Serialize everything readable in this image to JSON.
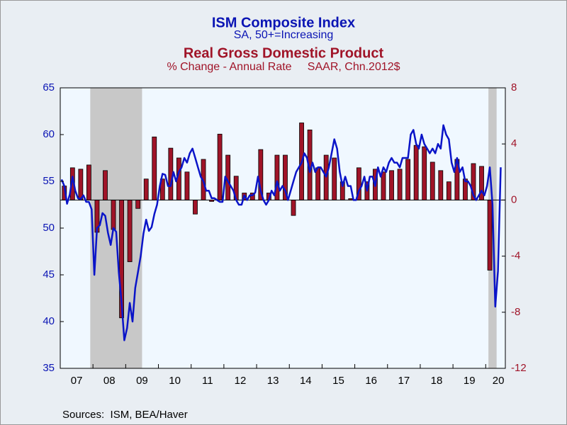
{
  "chart_data": {
    "type": "combo",
    "xlim": [
      2007,
      2020.6
    ],
    "xticks": [
      {
        "value": 2007,
        "label": "07"
      },
      {
        "value": 2008,
        "label": "08"
      },
      {
        "value": 2009,
        "label": "09"
      },
      {
        "value": 2010,
        "label": "10"
      },
      {
        "value": 2011,
        "label": "11"
      },
      {
        "value": 2012,
        "label": "12"
      },
      {
        "value": 2013,
        "label": "13"
      },
      {
        "value": 2014,
        "label": "14"
      },
      {
        "value": 2015,
        "label": "15"
      },
      {
        "value": 2016,
        "label": "16"
      },
      {
        "value": 2017,
        "label": "17"
      },
      {
        "value": 2018,
        "label": "18"
      },
      {
        "value": 2019,
        "label": "19"
      },
      {
        "value": 2020,
        "label": "20"
      }
    ],
    "ylim": [
      35,
      65
    ],
    "yticks": [
      35,
      40,
      45,
      50,
      55,
      60,
      65
    ],
    "y2lim": [
      -12,
      8
    ],
    "y2ticks": [
      -12,
      -8,
      -4,
      0,
      4,
      8
    ],
    "recessions": [
      [
        "2007-12",
        "2009-06"
      ],
      [
        "2020-02",
        "2020-04"
      ]
    ],
    "source": "Sources:  ISM, BEA/Haver",
    "series": [
      {
        "name": "ISM Composite Index",
        "subtitle": "SA, 50+=Increasing",
        "type": "line",
        "axis": "y",
        "color": "#0a14c8",
        "x": [
          "2007-01",
          "2007-02",
          "2007-03",
          "2007-04",
          "2007-05",
          "2007-06",
          "2007-07",
          "2007-08",
          "2007-09",
          "2007-10",
          "2007-11",
          "2007-12",
          "2008-01",
          "2008-02",
          "2008-03",
          "2008-04",
          "2008-05",
          "2008-06",
          "2008-07",
          "2008-08",
          "2008-09",
          "2008-10",
          "2008-11",
          "2008-12",
          "2009-01",
          "2009-02",
          "2009-03",
          "2009-04",
          "2009-05",
          "2009-06",
          "2009-07",
          "2009-08",
          "2009-09",
          "2009-10",
          "2009-11",
          "2009-12",
          "2010-01",
          "2010-02",
          "2010-03",
          "2010-04",
          "2010-05",
          "2010-06",
          "2010-07",
          "2010-08",
          "2010-09",
          "2010-10",
          "2010-11",
          "2010-12",
          "2011-01",
          "2011-02",
          "2011-03",
          "2011-04",
          "2011-05",
          "2011-06",
          "2011-07",
          "2011-08",
          "2011-09",
          "2011-10",
          "2011-11",
          "2011-12",
          "2012-01",
          "2012-02",
          "2012-03",
          "2012-04",
          "2012-05",
          "2012-06",
          "2012-07",
          "2012-08",
          "2012-09",
          "2012-10",
          "2012-11",
          "2012-12",
          "2013-01",
          "2013-02",
          "2013-03",
          "2013-04",
          "2013-05",
          "2013-06",
          "2013-07",
          "2013-08",
          "2013-09",
          "2013-10",
          "2013-11",
          "2013-12",
          "2014-01",
          "2014-02",
          "2014-03",
          "2014-04",
          "2014-05",
          "2014-06",
          "2014-07",
          "2014-08",
          "2014-09",
          "2014-10",
          "2014-11",
          "2014-12",
          "2015-01",
          "2015-02",
          "2015-03",
          "2015-04",
          "2015-05",
          "2015-06",
          "2015-07",
          "2015-08",
          "2015-09",
          "2015-10",
          "2015-11",
          "2015-12",
          "2016-01",
          "2016-02",
          "2016-03",
          "2016-04",
          "2016-05",
          "2016-06",
          "2016-07",
          "2016-08",
          "2016-09",
          "2016-10",
          "2016-11",
          "2016-12",
          "2017-01",
          "2017-02",
          "2017-03",
          "2017-04",
          "2017-05",
          "2017-06",
          "2017-07",
          "2017-08",
          "2017-09",
          "2017-10",
          "2017-11",
          "2017-12",
          "2018-01",
          "2018-02",
          "2018-03",
          "2018-04",
          "2018-05",
          "2018-06",
          "2018-07",
          "2018-08",
          "2018-09",
          "2018-10",
          "2018-11",
          "2018-12",
          "2019-01",
          "2019-02",
          "2019-03",
          "2019-04",
          "2019-05",
          "2019-06",
          "2019-07",
          "2019-08",
          "2019-09",
          "2019-10",
          "2019-11",
          "2019-12",
          "2020-01",
          "2020-02",
          "2020-03",
          "2020-04",
          "2020-05",
          "2020-06"
        ],
        "values": [
          55.2,
          54.5,
          52.6,
          53.6,
          55.5,
          54.0,
          53.2,
          53.1,
          53.5,
          52.8,
          52.8,
          52.0,
          45.0,
          50.0,
          50.3,
          51.6,
          51.3,
          49.5,
          48.2,
          50.0,
          49.6,
          45.2,
          42.0,
          38.0,
          39.3,
          42.0,
          40.0,
          43.6,
          45.3,
          47.0,
          49.4,
          50.9,
          49.7,
          50.1,
          51.5,
          52.5,
          54.5,
          55.8,
          55.7,
          54.5,
          54.5,
          56.0,
          55.0,
          56.0,
          56.5,
          57.5,
          57.0,
          58.0,
          58.5,
          57.5,
          56.5,
          55.5,
          55.0,
          54.0,
          54.0,
          53.2,
          53.2,
          53.0,
          52.8,
          52.8,
          55.5,
          55.0,
          54.5,
          54.0,
          53.0,
          52.5,
          52.5,
          53.5,
          53.0,
          53.5,
          53.5,
          53.8,
          55.5,
          54.0,
          53.0,
          52.5,
          53.0,
          54.0,
          53.5,
          55.0,
          54.0,
          54.5,
          54.0,
          53.0,
          54.0,
          55.0,
          56.0,
          56.5,
          57.0,
          58.0,
          57.5,
          56.0,
          57.0,
          56.0,
          56.5,
          56.5,
          56.0,
          55.5,
          56.5,
          58.0,
          59.5,
          58.5,
          56.0,
          54.5,
          55.5,
          54.5,
          54.5,
          53.0,
          53.0,
          54.0,
          54.5,
          55.5,
          54.0,
          55.5,
          55.5,
          54.5,
          56.5,
          55.5,
          56.5,
          56.0,
          57.0,
          57.5,
          57.0,
          57.0,
          56.5,
          57.5,
          57.5,
          57.5,
          60.0,
          60.5,
          59.0,
          58.5,
          60.0,
          59.0,
          58.5,
          58.0,
          58.5,
          58.0,
          59.0,
          58.5,
          61.0,
          60.0,
          59.5,
          57.0,
          56.0,
          57.5,
          56.0,
          56.5,
          55.0,
          55.0,
          54.5,
          53.5,
          53.0,
          53.5,
          54.0,
          53.5,
          54.5,
          56.5,
          52.5,
          41.6,
          45.4,
          56.5
        ]
      },
      {
        "name": "Real Gross Domestic Product",
        "subtitle": "% Change - Annual Rate     SAAR, Chn.2012$",
        "type": "bar",
        "axis": "y2",
        "color": "#a01428",
        "x": [
          "2007Q1",
          "2007Q2",
          "2007Q3",
          "2007Q4",
          "2008Q1",
          "2008Q2",
          "2008Q3",
          "2008Q4",
          "2009Q1",
          "2009Q2",
          "2009Q3",
          "2009Q4",
          "2010Q1",
          "2010Q2",
          "2010Q3",
          "2010Q4",
          "2011Q1",
          "2011Q2",
          "2011Q3",
          "2011Q4",
          "2012Q1",
          "2012Q2",
          "2012Q3",
          "2012Q4",
          "2013Q1",
          "2013Q2",
          "2013Q3",
          "2013Q4",
          "2014Q1",
          "2014Q2",
          "2014Q3",
          "2014Q4",
          "2015Q1",
          "2015Q2",
          "2015Q3",
          "2015Q4",
          "2016Q1",
          "2016Q2",
          "2016Q3",
          "2016Q4",
          "2017Q1",
          "2017Q2",
          "2017Q3",
          "2017Q4",
          "2018Q1",
          "2018Q2",
          "2018Q3",
          "2018Q4",
          "2019Q1",
          "2019Q2",
          "2019Q3",
          "2019Q4",
          "2020Q1"
        ],
        "values": [
          1.0,
          2.3,
          2.2,
          2.5,
          -2.3,
          2.1,
          -2.1,
          -8.4,
          -4.4,
          -0.6,
          1.5,
          4.5,
          1.5,
          3.7,
          3.0,
          2.0,
          -1.0,
          2.9,
          -0.1,
          4.7,
          3.2,
          1.7,
          0.5,
          0.5,
          3.6,
          0.5,
          3.2,
          3.2,
          -1.1,
          5.5,
          5.0,
          2.3,
          3.2,
          3.0,
          1.3,
          0.1,
          2.3,
          1.3,
          2.2,
          2.0,
          2.1,
          2.2,
          2.9,
          3.9,
          3.8,
          2.7,
          2.1,
          1.3,
          2.9,
          1.5,
          2.6,
          2.4,
          -5.0
        ]
      }
    ]
  }
}
